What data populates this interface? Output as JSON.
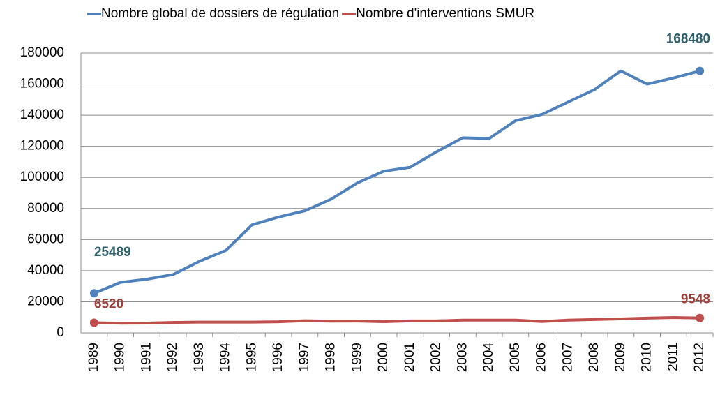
{
  "chart_data": {
    "type": "line",
    "categories": [
      "1989",
      "1990",
      "1991",
      "1992",
      "1993",
      "1994",
      "1995",
      "1996",
      "1997",
      "1998",
      "1999",
      "2000",
      "2001",
      "2002",
      "2003",
      "2004",
      "2005",
      "2006",
      "2007",
      "2008",
      "2009",
      "2010",
      "2011",
      "2012"
    ],
    "series": [
      {
        "name": "Nombre global de dossiers de régulation",
        "color": "#4f81bd",
        "label_color": "#2e5f6b",
        "values": [
          25489,
          32500,
          34500,
          37500,
          46000,
          53000,
          69500,
          74500,
          78500,
          86000,
          96500,
          104000,
          106500,
          116500,
          125500,
          125000,
          136500,
          140500,
          148500,
          156500,
          168500,
          160000,
          164000,
          168480
        ]
      },
      {
        "name": "Nombre d'interventions SMUR",
        "color": "#c0504d",
        "label_color": "#a0403d",
        "values": [
          6520,
          6200,
          6300,
          6700,
          6900,
          6900,
          6900,
          7100,
          7800,
          7500,
          7600,
          7200,
          7700,
          7700,
          8200,
          8200,
          8200,
          7300,
          8200,
          8600,
          9000,
          9500,
          9900,
          9548
        ]
      }
    ],
    "ylim": [
      0,
      180000
    ],
    "yticks": [
      0,
      20000,
      40000,
      60000,
      80000,
      100000,
      120000,
      140000,
      160000,
      180000
    ],
    "grid": true,
    "legend": "top"
  }
}
